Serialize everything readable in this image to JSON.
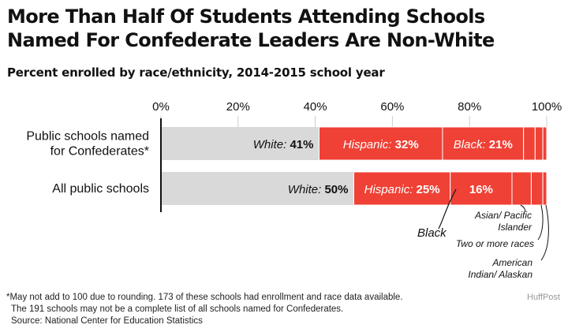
{
  "title": "More Than Half Of Students Attending Schools Named For Confederate Leaders Are Non-White",
  "subtitle": "Percent enrolled by race/ethnicity, 2014-2015 school year",
  "footnote": {
    "line1": "*May not add to 100 due to rounding. 173 of these schools had enrollment and race data available.",
    "line2": "The 191 schools may not be a complete list of all schools named for Confederates.",
    "line3": "Source: National Center for Education Statistics"
  },
  "credit": "HuffPost",
  "colors": {
    "white": "#d9d9d9",
    "other": "#ef4136",
    "axis": "#111111",
    "tick_line": "#cccccc"
  },
  "chart_data": {
    "type": "bar",
    "orientation": "horizontal",
    "stacked": true,
    "xlim": [
      0,
      100
    ],
    "ticks": [
      0,
      20,
      40,
      60,
      80,
      100
    ],
    "tick_labels": [
      "0%",
      "20%",
      "40%",
      "60%",
      "80%",
      "100%"
    ],
    "categories": [
      "Public schools named\nfor Confederates*",
      "All public schools"
    ],
    "series": [
      {
        "name": "White",
        "values": [
          41,
          50
        ],
        "labels": [
          "White: 41%",
          "White: 50%"
        ]
      },
      {
        "name": "Hispanic",
        "values": [
          32,
          25
        ],
        "labels": [
          "Hispanic: 32%",
          "Hispanic: 25%"
        ]
      },
      {
        "name": "Black",
        "values": [
          21,
          16
        ],
        "labels": [
          "Black: 21%",
          "16%"
        ]
      },
      {
        "name": "Asian/ Pacific Islander",
        "values": [
          3,
          5
        ],
        "labels": [
          "",
          ""
        ]
      },
      {
        "name": "Two or more races",
        "values": [
          2,
          3
        ],
        "labels": [
          "",
          ""
        ]
      },
      {
        "name": "American Indian/ Alaskan",
        "values": [
          1,
          1
        ],
        "labels": [
          "",
          ""
        ]
      }
    ],
    "annotations": [
      "Black",
      "Asian/ Pacific\nIslander",
      "Two or more races",
      "American\nIndian/ Alaskan"
    ]
  }
}
